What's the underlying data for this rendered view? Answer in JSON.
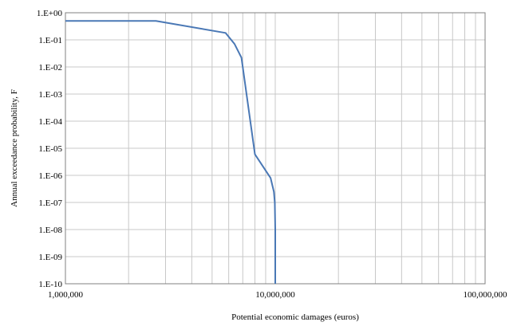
{
  "chart_data": {
    "type": "line",
    "xlabel": "Potential economic damages (euros)",
    "ylabel": "Annual exceedance probability, F",
    "x_scale": "log",
    "y_scale": "log",
    "xlim": [
      1000000,
      100000000
    ],
    "ylim": [
      1e-10,
      1
    ],
    "x_tick_values": [
      1000000,
      10000000,
      100000000
    ],
    "x_tick_labels": [
      "1,000,000",
      "10,000,000",
      "100,000,000"
    ],
    "y_tick_values": [
      1,
      0.1,
      0.01,
      0.001,
      0.0001,
      1e-05,
      1e-06,
      1e-07,
      1e-08,
      1e-09,
      1e-10
    ],
    "y_tick_labels": [
      "1.E+00",
      "1.E-01",
      "1.E-02",
      "1.E-03",
      "1.E-04",
      "1.E-05",
      "1.E-06",
      "1.E-07",
      "1.E-08",
      "1.E-09",
      "1.E-10"
    ],
    "grid": true,
    "series": [
      {
        "color": "#4a78b5",
        "x": [
          1000000,
          2700000,
          5800000,
          6400000,
          6900000,
          8000000,
          9500000,
          9850000,
          9950000,
          10000000,
          10000000
        ],
        "y": [
          0.5,
          0.5,
          0.18,
          0.07,
          0.022,
          6e-06,
          8e-07,
          2.5e-07,
          1e-07,
          1e-08,
          1e-10
        ]
      }
    ]
  }
}
